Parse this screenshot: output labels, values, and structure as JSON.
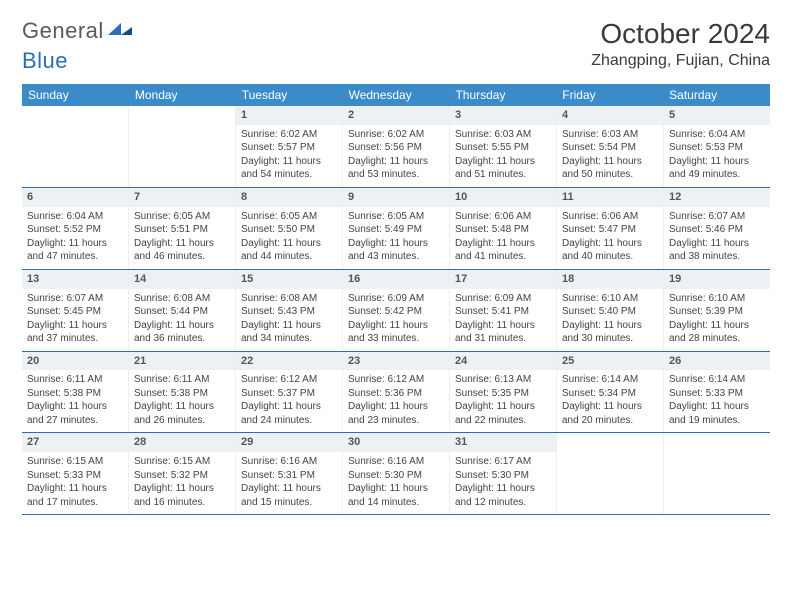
{
  "brand": {
    "part1": "General",
    "part2": "Blue"
  },
  "title": "October 2024",
  "location": "Zhangping, Fujian, China",
  "colors": {
    "header_bg": "#3b8bc9",
    "header_text": "#ffffff",
    "rule": "#2a6fb5",
    "daynum_bg": "#eef1f3",
    "body_text": "#444444",
    "logo_gray": "#5a5a5a",
    "logo_blue": "#2a6fb5"
  },
  "typography": {
    "title_fontsize": 28,
    "location_fontsize": 16,
    "dow_fontsize": 12,
    "cell_fontsize": 10
  },
  "days_of_week": [
    "Sunday",
    "Monday",
    "Tuesday",
    "Wednesday",
    "Thursday",
    "Friday",
    "Saturday"
  ],
  "calendar": {
    "first_weekday_index": 2,
    "num_days": 31,
    "days": [
      {
        "n": 1,
        "sunrise": "6:02 AM",
        "sunset": "5:57 PM",
        "daylight": "11 hours and 54 minutes."
      },
      {
        "n": 2,
        "sunrise": "6:02 AM",
        "sunset": "5:56 PM",
        "daylight": "11 hours and 53 minutes."
      },
      {
        "n": 3,
        "sunrise": "6:03 AM",
        "sunset": "5:55 PM",
        "daylight": "11 hours and 51 minutes."
      },
      {
        "n": 4,
        "sunrise": "6:03 AM",
        "sunset": "5:54 PM",
        "daylight": "11 hours and 50 minutes."
      },
      {
        "n": 5,
        "sunrise": "6:04 AM",
        "sunset": "5:53 PM",
        "daylight": "11 hours and 49 minutes."
      },
      {
        "n": 6,
        "sunrise": "6:04 AM",
        "sunset": "5:52 PM",
        "daylight": "11 hours and 47 minutes."
      },
      {
        "n": 7,
        "sunrise": "6:05 AM",
        "sunset": "5:51 PM",
        "daylight": "11 hours and 46 minutes."
      },
      {
        "n": 8,
        "sunrise": "6:05 AM",
        "sunset": "5:50 PM",
        "daylight": "11 hours and 44 minutes."
      },
      {
        "n": 9,
        "sunrise": "6:05 AM",
        "sunset": "5:49 PM",
        "daylight": "11 hours and 43 minutes."
      },
      {
        "n": 10,
        "sunrise": "6:06 AM",
        "sunset": "5:48 PM",
        "daylight": "11 hours and 41 minutes."
      },
      {
        "n": 11,
        "sunrise": "6:06 AM",
        "sunset": "5:47 PM",
        "daylight": "11 hours and 40 minutes."
      },
      {
        "n": 12,
        "sunrise": "6:07 AM",
        "sunset": "5:46 PM",
        "daylight": "11 hours and 38 minutes."
      },
      {
        "n": 13,
        "sunrise": "6:07 AM",
        "sunset": "5:45 PM",
        "daylight": "11 hours and 37 minutes."
      },
      {
        "n": 14,
        "sunrise": "6:08 AM",
        "sunset": "5:44 PM",
        "daylight": "11 hours and 36 minutes."
      },
      {
        "n": 15,
        "sunrise": "6:08 AM",
        "sunset": "5:43 PM",
        "daylight": "11 hours and 34 minutes."
      },
      {
        "n": 16,
        "sunrise": "6:09 AM",
        "sunset": "5:42 PM",
        "daylight": "11 hours and 33 minutes."
      },
      {
        "n": 17,
        "sunrise": "6:09 AM",
        "sunset": "5:41 PM",
        "daylight": "11 hours and 31 minutes."
      },
      {
        "n": 18,
        "sunrise": "6:10 AM",
        "sunset": "5:40 PM",
        "daylight": "11 hours and 30 minutes."
      },
      {
        "n": 19,
        "sunrise": "6:10 AM",
        "sunset": "5:39 PM",
        "daylight": "11 hours and 28 minutes."
      },
      {
        "n": 20,
        "sunrise": "6:11 AM",
        "sunset": "5:38 PM",
        "daylight": "11 hours and 27 minutes."
      },
      {
        "n": 21,
        "sunrise": "6:11 AM",
        "sunset": "5:38 PM",
        "daylight": "11 hours and 26 minutes."
      },
      {
        "n": 22,
        "sunrise": "6:12 AM",
        "sunset": "5:37 PM",
        "daylight": "11 hours and 24 minutes."
      },
      {
        "n": 23,
        "sunrise": "6:12 AM",
        "sunset": "5:36 PM",
        "daylight": "11 hours and 23 minutes."
      },
      {
        "n": 24,
        "sunrise": "6:13 AM",
        "sunset": "5:35 PM",
        "daylight": "11 hours and 22 minutes."
      },
      {
        "n": 25,
        "sunrise": "6:14 AM",
        "sunset": "5:34 PM",
        "daylight": "11 hours and 20 minutes."
      },
      {
        "n": 26,
        "sunrise": "6:14 AM",
        "sunset": "5:33 PM",
        "daylight": "11 hours and 19 minutes."
      },
      {
        "n": 27,
        "sunrise": "6:15 AM",
        "sunset": "5:33 PM",
        "daylight": "11 hours and 17 minutes."
      },
      {
        "n": 28,
        "sunrise": "6:15 AM",
        "sunset": "5:32 PM",
        "daylight": "11 hours and 16 minutes."
      },
      {
        "n": 29,
        "sunrise": "6:16 AM",
        "sunset": "5:31 PM",
        "daylight": "11 hours and 15 minutes."
      },
      {
        "n": 30,
        "sunrise": "6:16 AM",
        "sunset": "5:30 PM",
        "daylight": "11 hours and 14 minutes."
      },
      {
        "n": 31,
        "sunrise": "6:17 AM",
        "sunset": "5:30 PM",
        "daylight": "11 hours and 12 minutes."
      }
    ]
  },
  "labels": {
    "sunrise": "Sunrise:",
    "sunset": "Sunset:",
    "daylight": "Daylight:"
  }
}
